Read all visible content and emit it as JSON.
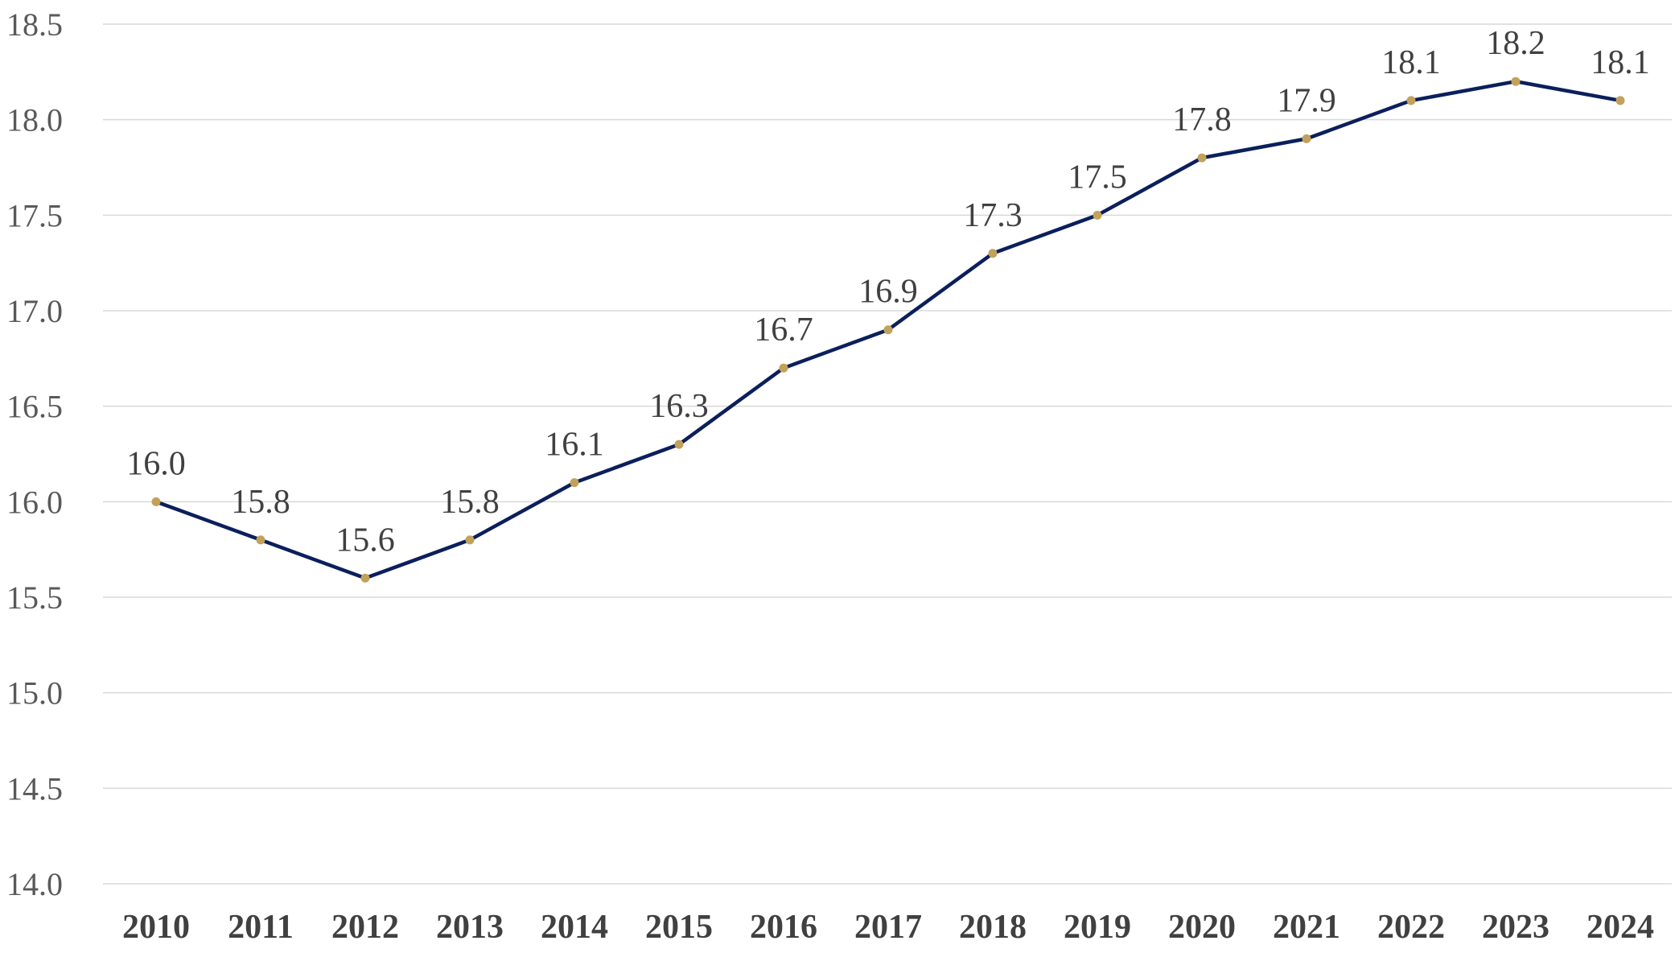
{
  "chart_data": {
    "type": "line",
    "title": "",
    "xlabel": "",
    "ylabel": "",
    "categories": [
      "2010",
      "2011",
      "2012",
      "2013",
      "2014",
      "2015",
      "2016",
      "2017",
      "2018",
      "2019",
      "2020",
      "2021",
      "2022",
      "2023",
      "2024"
    ],
    "series": [
      {
        "values": [
          16.0,
          15.8,
          15.6,
          15.8,
          16.1,
          16.3,
          16.7,
          16.9,
          17.3,
          17.5,
          17.8,
          17.9,
          18.1,
          18.2,
          18.1
        ],
        "data_labels": [
          "16.0",
          "15.8",
          "15.6",
          "15.8",
          "16.1",
          "16.3",
          "16.7",
          "16.9",
          "17.3",
          "17.5",
          "17.8",
          "17.9",
          "18.1",
          "18.2",
          "18.1"
        ],
        "line_color": "#0b1f5c",
        "marker_color": "#c2a25a"
      }
    ],
    "ylim": [
      14.0,
      18.5
    ],
    "y_ticks": [
      "14.0",
      "14.5",
      "15.0",
      "15.5",
      "16.0",
      "16.5",
      "17.0",
      "17.5",
      "18.0",
      "18.5"
    ],
    "grid": true,
    "legend": "none"
  }
}
